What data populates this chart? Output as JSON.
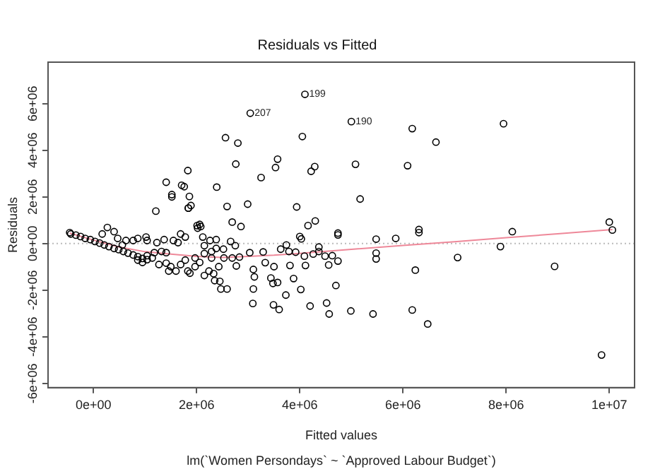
{
  "chart_data": {
    "type": "scatter",
    "title": "Residuals vs Fitted",
    "xlabel": "Fitted values",
    "ylabel": "Residuals",
    "xlim": [
      -880000,
      10490000
    ],
    "ylim": [
      -6180000,
      7780000
    ],
    "xticks": [
      {
        "value": 0,
        "label": "0e+00"
      },
      {
        "value": 2000000,
        "label": "2e+06"
      },
      {
        "value": 4000000,
        "label": "4e+06"
      },
      {
        "value": 6000000,
        "label": "6e+06"
      },
      {
        "value": 8000000,
        "label": "8e+06"
      },
      {
        "value": 10000000,
        "label": "1e+07"
      }
    ],
    "yticks": [
      {
        "value": -6000000,
        "label": "-6e+06"
      },
      {
        "value": -4000000,
        "label": "-4e+06"
      },
      {
        "value": -2000000,
        "label": "-2e+06"
      },
      {
        "value": 0,
        "label": "0e+00"
      },
      {
        "value": 2000000,
        "label": "2e+06"
      },
      {
        "value": 4000000,
        "label": "4e+06"
      },
      {
        "value": 6000000,
        "label": "6e+06"
      }
    ],
    "grid": false,
    "legend": false,
    "ref_lines": [
      {
        "axis": "y",
        "value": 0,
        "color": "#bbbbbb",
        "line_style": "dotted"
      }
    ],
    "annotations": [
      {
        "text": "199",
        "x": 4100000,
        "y": 6400000
      },
      {
        "text": "207",
        "x": 3040000,
        "y": 5590000
      },
      {
        "text": "190",
        "x": 5000000,
        "y": 5230000
      },
      "lm(`Women Persondays` ~ `Approved Labour Budget`)"
    ],
    "series": [
      {
        "color": "#000000",
        "marker": "circle",
        "x": [
          4100000.0,
          3040000.0,
          5000000.0,
          6180000.0,
          7950000.0,
          6640000.0,
          2560000.0,
          2800000.0,
          4050000.0,
          3570000.0,
          3530000.0,
          2760000.0,
          4290000.0,
          4220000.0,
          5080000.0,
          6090000.0,
          3250000.0,
          1830000.0,
          1410000.0,
          1760000.0,
          1710000.0,
          2390000.0,
          1520000.0,
          1520000.0,
          1860000.0,
          1840000.0,
          5170000.0,
          1210000.0,
          1890000.0,
          1840000.0,
          2590000.0,
          2990000.0,
          3940000.0,
          2080000.0,
          2020000.0,
          2690000.0,
          2860000.0,
          4300000.0,
          4160000.0,
          4000000.0,
          4030000.0,
          4740000.0,
          4740000.0,
          6310000.0,
          6310000.0,
          8120000.0,
          10000000.0,
          10060000.0,
          5860000.0,
          5480000.0,
          7890000.0,
          7060000.0,
          5480000.0,
          5480000.0,
          8940000.0,
          6240000.0,
          4700000.0,
          3880000.0,
          4020000.0,
          3440000.0,
          3480000.0,
          3570000.0,
          3100000.0,
          3120000.0,
          3100000.0,
          3090000.0,
          3490000.0,
          3600000.0,
          3730000.0,
          4200000.0,
          4520000.0,
          4570000.0,
          4990000.0,
          5420000.0,
          6180000.0,
          6480000.0,
          9850000.0,
          2470000.0,
          2590000.0,
          2350000.0,
          2450000.0,
          2830000.0,
          3030000.0,
          3290000.0,
          3330000.0,
          3500000.0,
          3790000.0,
          3920000.0,
          4090000.0,
          4110000.0,
          4260000.0,
          4370000.0,
          4490000.0,
          4560000.0,
          4630000.0,
          4740000.0,
          3810000.0,
          3740000.0,
          2770000.0,
          2690000.0,
          2530000.0,
          4370000.0,
          3630000.0,
          -460000.0,
          -440000.0,
          -340000.0,
          -250000.0,
          -160000.0,
          -60000.0,
          30000.0,
          120000.0,
          210000.0,
          300000.0,
          400000.0,
          490000.0,
          580000.0,
          670000.0,
          770000.0,
          860000.0,
          950000.0,
          1040000.0,
          1140000.0,
          270000.0,
          170000.0,
          400000.0,
          470000.0,
          560000.0,
          630000.0,
          770000.0,
          860000.0,
          1020000.0,
          1040000.0,
          1230000.0,
          1370000.0,
          1550000.0,
          1640000.0,
          1690000.0,
          1780000.0,
          2010000.0,
          2060000.0,
          2120000.0,
          2260000.0,
          2380000.0,
          2520000.0,
          2660000.0,
          2750000.0,
          2380000.0,
          2150000.0,
          2290000.0,
          1320000.0,
          1410000.0,
          1270000.0,
          1460000.0,
          1600000.0,
          1500000.0,
          1690000.0,
          1830000.0,
          1870000.0,
          1970000.0,
          2060000.0,
          2150000.0,
          2240000.0,
          2330000.0,
          2430000.0,
          860000.0,
          950000.0,
          1040000.0,
          1180000.0,
          1410000.0,
          1780000.0,
          1970000.0,
          2150000.0,
          2290000.0
        ],
        "values": [
          6400000.0,
          5590000.0,
          5230000.0,
          4930000.0,
          5140000.0,
          4350000.0,
          4540000.0,
          4310000.0,
          4590000.0,
          3620000.0,
          3260000.0,
          3410000.0,
          3300000.0,
          3100000.0,
          3400000.0,
          3340000.0,
          2830000.0,
          3130000.0,
          2630000.0,
          2440000.0,
          2500000.0,
          2420000.0,
          2100000.0,
          2000000.0,
          2020000.0,
          1520000.0,
          1910000.0,
          1390000.0,
          1630000.0,
          1520000.0,
          1590000.0,
          1690000.0,
          1570000.0,
          730000.0,
          660000.0,
          920000.0,
          730000.0,
          970000.0,
          770000.0,
          300000.0,
          200000.0,
          450000.0,
          370000.0,
          600000.0,
          470000.0,
          510000.0,
          920000.0,
          580000.0,
          220000.0,
          190000.0,
          -130000.0,
          -600000.0,
          -410000.0,
          -660000.0,
          -980000.0,
          -1140000.0,
          -1800000.0,
          -1500000.0,
          -1970000.0,
          -1480000.0,
          -1710000.0,
          -1670000.0,
          -1110000.0,
          -1430000.0,
          -1950000.0,
          -2570000.0,
          -2630000.0,
          -2830000.0,
          -2210000.0,
          -2680000.0,
          -2550000.0,
          -3020000.0,
          -2890000.0,
          -3020000.0,
          -2850000.0,
          -3450000.0,
          -4780000.0,
          -1950000.0,
          -1950000.0,
          -1590000.0,
          -1620000.0,
          -580000.0,
          -390000.0,
          -360000.0,
          -820000.0,
          -990000.0,
          -340000.0,
          -370000.0,
          -540000.0,
          -940000.0,
          -450000.0,
          -340000.0,
          -540000.0,
          -920000.0,
          -520000.0,
          -750000.0,
          -940000.0,
          -60000.0,
          -960000.0,
          -620000.0,
          -620000.0,
          -150000.0,
          -240000.0,
          470000.0,
          410000.0,
          360000.0,
          300000.0,
          220000.0,
          170000.0,
          90000.0,
          20000.0,
          -60000.0,
          -130000.0,
          -210000.0,
          -260000.0,
          -340000.0,
          -410000.0,
          -490000.0,
          -560000.0,
          -640000.0,
          -690000.0,
          -620000.0,
          690000.0,
          410000.0,
          510000.0,
          220000.0,
          -60000.0,
          130000.0,
          130000.0,
          220000.0,
          280000.0,
          130000.0,
          40000.0,
          170000.0,
          130000.0,
          40000.0,
          410000.0,
          280000.0,
          770000.0,
          820000.0,
          280000.0,
          130000.0,
          170000.0,
          -240000.0,
          90000.0,
          -90000.0,
          -210000.0,
          -430000.0,
          -620000.0,
          -340000.0,
          -390000.0,
          -900000.0,
          -1180000.0,
          -1180000.0,
          -990000.0,
          -900000.0,
          -1180000.0,
          -1270000.0,
          -990000.0,
          -810000.0,
          -1370000.0,
          -1180000.0,
          -1290000.0,
          -990000.0,
          -710000.0,
          -810000.0,
          -520000.0,
          -390000.0,
          -840000.0,
          -710000.0,
          -620000.0,
          -90000.0,
          -340000.0
        ]
      },
      {
        "type": "line",
        "color": "#ee8899",
        "marker": "none",
        "x": [
          -460000.0,
          0,
          500000.0,
          1000000.0,
          1500000.0,
          2000000.0,
          2500000.0,
          3000000.0,
          3500000.0,
          4000000.0,
          5000000.0,
          6000000.0,
          7000000.0,
          8000000.0,
          9000000.0,
          10060000.0
        ],
        "values": [
          450000.0,
          150000.0,
          -150000.0,
          -350000.0,
          -450000.0,
          -550000.0,
          -600000.0,
          -550000.0,
          -500000.0,
          -420000.0,
          -250000.0,
          -80000.0,
          80000.0,
          250000.0,
          420000.0,
          600000.0
        ]
      }
    ]
  }
}
